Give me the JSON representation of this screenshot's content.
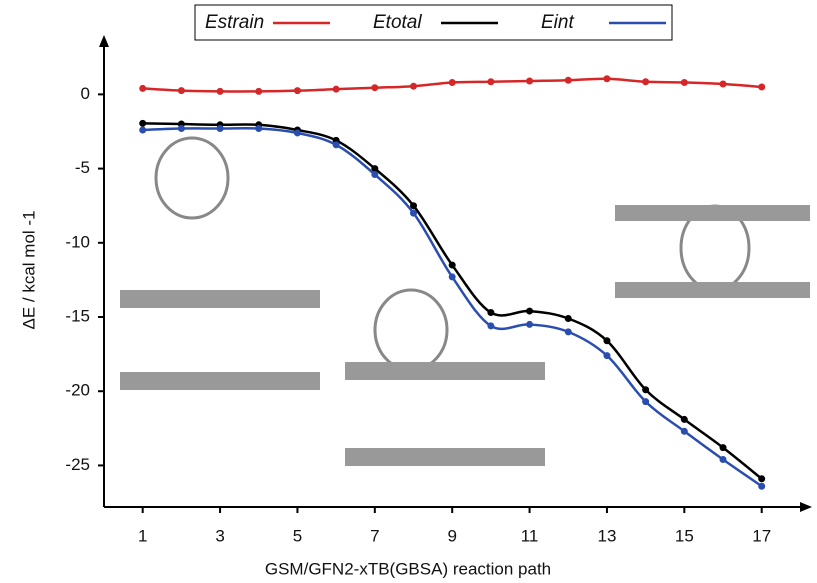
{
  "chart_data": {
    "type": "line",
    "x_label": "GSM/GFN2-xTB(GBSA) reaction path",
    "y_label": "ΔE / kcal mol -1",
    "x": [
      1,
      2,
      3,
      4,
      5,
      6,
      7,
      8,
      9,
      10,
      11,
      12,
      13,
      14,
      15,
      16,
      17
    ],
    "series": [
      {
        "name": "Estrain",
        "color": "#d62728",
        "values": [
          0.4,
          0.25,
          0.2,
          0.2,
          0.25,
          0.35,
          0.45,
          0.55,
          0.8,
          0.85,
          0.9,
          0.95,
          1.05,
          0.85,
          0.8,
          0.7,
          0.5
        ]
      },
      {
        "name": "Etotal",
        "color": "#000000",
        "values": [
          -1.95,
          -2.0,
          -2.05,
          -2.05,
          -2.4,
          -3.1,
          -5.0,
          -7.5,
          -11.5,
          -14.7,
          -14.6,
          -15.1,
          -16.6,
          -19.9,
          -21.9,
          -23.8,
          -25.9
        ]
      },
      {
        "name": "Eint",
        "color": "#2a4db0",
        "values": [
          -2.4,
          -2.3,
          -2.3,
          -2.3,
          -2.6,
          -3.4,
          -5.4,
          -8.0,
          -12.3,
          -15.6,
          -15.5,
          -16.0,
          -17.6,
          -20.7,
          -22.7,
          -24.6,
          -26.4
        ]
      }
    ],
    "xlim": [
      0,
      18.3
    ],
    "xticks": [
      1,
      3,
      5,
      7,
      9,
      11,
      13,
      15,
      17
    ],
    "ylim": [
      -27.8,
      4
    ],
    "yticks": [
      0,
      -5,
      -10,
      -15,
      -20,
      -25
    ]
  }
}
